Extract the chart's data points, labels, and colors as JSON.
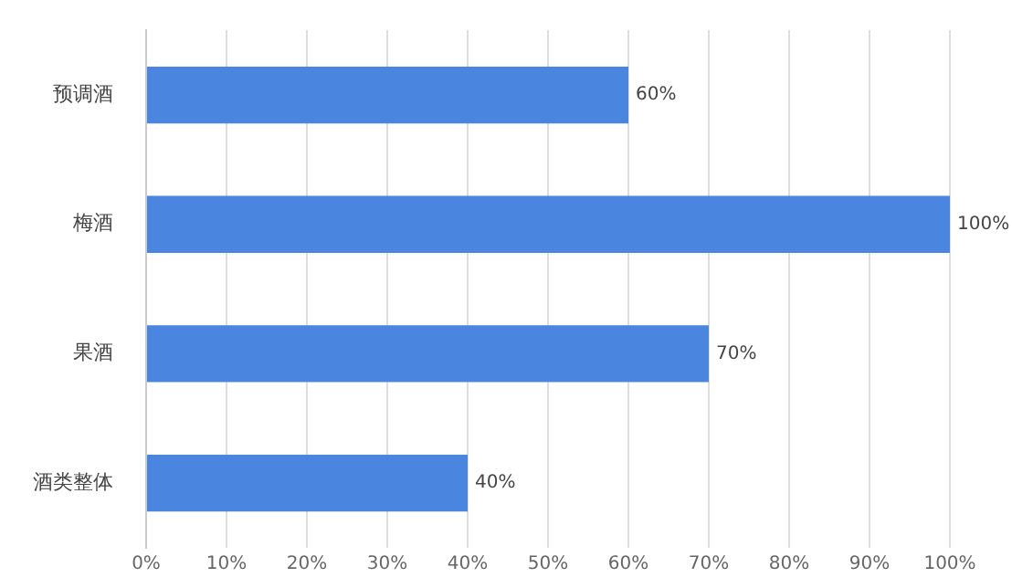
{
  "chart_data": {
    "type": "bar",
    "orientation": "horizontal",
    "categories": [
      "预调酒",
      "梅酒",
      "果酒",
      "酒类整体"
    ],
    "values": [
      60,
      100,
      70,
      40
    ],
    "color": "#4a86e0",
    "value_labels": [
      "60%",
      "100%",
      "70%",
      "40%"
    ],
    "xlim": [
      0,
      100
    ],
    "xticks": [
      {
        "value": 0,
        "label": "0%"
      },
      {
        "value": 10,
        "label": "10%"
      },
      {
        "value": 20,
        "label": "20%"
      },
      {
        "value": 30,
        "label": "30%"
      },
      {
        "value": 40,
        "label": "40%"
      },
      {
        "value": 50,
        "label": "50%"
      },
      {
        "value": 60,
        "label": "60%"
      },
      {
        "value": 70,
        "label": "70%"
      },
      {
        "value": 80,
        "label": "80%"
      },
      {
        "value": 90,
        "label": "90%"
      },
      {
        "value": 100,
        "label": "100%"
      }
    ],
    "grid": "x",
    "legend": false
  }
}
